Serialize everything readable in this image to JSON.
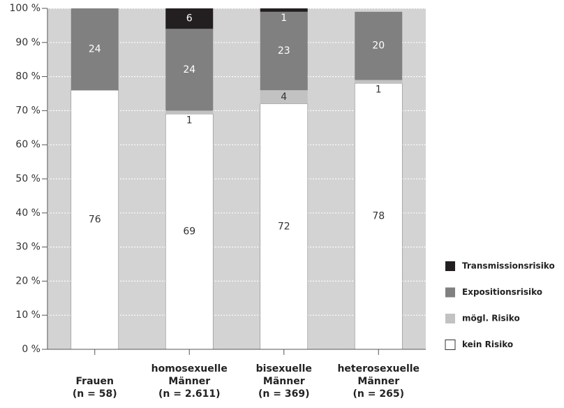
{
  "chart_data": {
    "type": "stacked_bar",
    "categories": [
      [
        "Frauen",
        "(n = 58)"
      ],
      [
        "homosexuelle",
        "Männer",
        "(n = 2.611)"
      ],
      [
        "bisexuelle",
        "Männer",
        "(n = 369)"
      ],
      [
        "heterosexuelle",
        "Männer",
        "(n = 265)"
      ]
    ],
    "series": [
      {
        "name": "kein Risiko",
        "color": "#ffffff",
        "values": [
          76,
          69,
          72,
          78
        ]
      },
      {
        "name": "mögl. Risiko",
        "color": "#c2c2c2",
        "values": [
          null,
          1,
          4,
          1
        ]
      },
      {
        "name": "Expositionsrisiko",
        "color": "#808080",
        "values": [
          24,
          24,
          23,
          20
        ]
      },
      {
        "name": "Transmissionsrisiko",
        "color": "#231f20",
        "values": [
          null,
          6,
          1,
          null
        ]
      }
    ],
    "ylim": [
      0,
      100
    ],
    "yticks": [
      {
        "value": 0,
        "label": "0 %"
      },
      {
        "value": 10,
        "label": "10 %"
      },
      {
        "value": 20,
        "label": "20 %"
      },
      {
        "value": 30,
        "label": "30 %"
      },
      {
        "value": 40,
        "label": "40 %"
      },
      {
        "value": 50,
        "label": "50 %"
      },
      {
        "value": 60,
        "label": "60 %"
      },
      {
        "value": 70,
        "label": "70 %"
      },
      {
        "value": 80,
        "label": "80 %"
      },
      {
        "value": 90,
        "label": "90 %"
      },
      {
        "value": 100,
        "label": "100 %"
      }
    ],
    "grid": true
  }
}
